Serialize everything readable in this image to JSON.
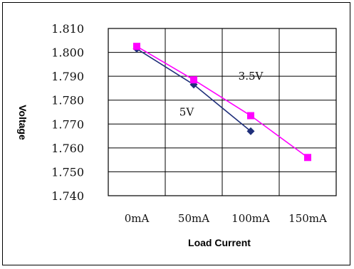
{
  "chart_data": {
    "type": "line",
    "xlabel": "Load Current",
    "ylabel": "Voltage",
    "categories": [
      "0mA",
      "50mA",
      "100mA",
      "150mA"
    ],
    "ylim": [
      1.74,
      1.81
    ],
    "yticks": [
      "1.810",
      "1.800",
      "1.790",
      "1.780",
      "1.770",
      "1.760",
      "1.750",
      "1.740"
    ],
    "grid": true,
    "series": [
      {
        "name": "5V",
        "color": "#1f2f7a",
        "marker": "diamond",
        "x": [
          "0mA",
          "50mA",
          "100mA"
        ],
        "values": [
          1.8015,
          1.7865,
          1.767
        ]
      },
      {
        "name": "3.5V",
        "color": "#ff00ff",
        "marker": "square",
        "x": [
          "0mA",
          "50mA",
          "100mA",
          "150mA"
        ],
        "values": [
          1.8025,
          1.7885,
          1.7735,
          1.756
        ]
      }
    ]
  }
}
